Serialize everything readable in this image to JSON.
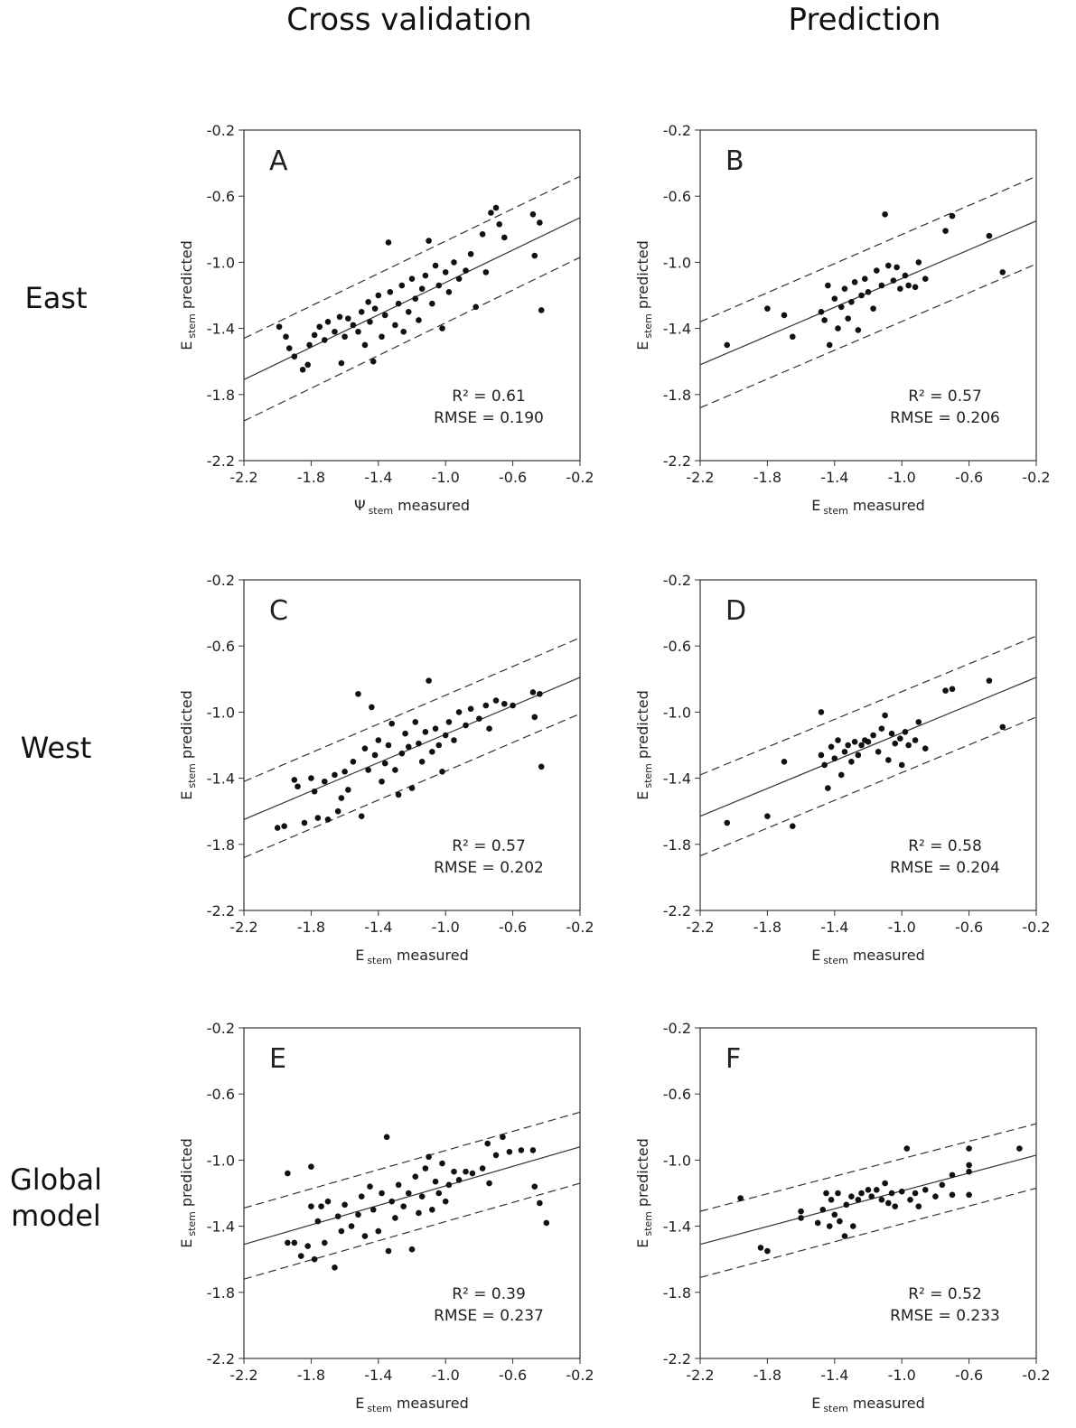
{
  "column_titles": [
    "Cross validation",
    "Prediction"
  ],
  "row_titles": [
    "East",
    "West",
    "Global model"
  ],
  "chart_data": [
    {
      "type": "scatter",
      "panel_label": "A",
      "xlabel": {
        "symbol": "Ψ",
        "subscript": "stem",
        "text": "measured"
      },
      "ylabel": {
        "symbol": "E",
        "subscript": "stem",
        "text": "predicted"
      },
      "stats": [
        "R² = 0.61",
        "RMSE = 0.190"
      ],
      "xlim": [
        -2.2,
        -0.2
      ],
      "ylim": [
        -2.2,
        -0.2
      ],
      "xticks": [
        -2.2,
        -1.8,
        -1.4,
        {
          "value": -1,
          "label": "-1.0"
        },
        -0.6,
        -0.2
      ],
      "yticks": [
        -2.2,
        -1.8,
        -1.4,
        {
          "value": -1,
          "label": "-1.0"
        },
        -0.6,
        -0.2
      ],
      "x": [
        -1.99,
        -1.95,
        -1.93,
        -1.9,
        -1.85,
        -1.82,
        -1.81,
        -1.78,
        -1.75,
        -1.72,
        -1.7,
        -1.66,
        -1.63,
        -1.62,
        -1.6,
        -1.58,
        -1.55,
        -1.52,
        -1.5,
        -1.48,
        -1.46,
        -1.45,
        -1.43,
        -1.42,
        -1.4,
        -1.38,
        -1.36,
        -1.34,
        -1.33,
        -1.3,
        -1.28,
        -1.26,
        -1.25,
        -1.22,
        -1.2,
        -1.18,
        -1.16,
        -1.14,
        -1.12,
        -1.1,
        -1.08,
        -1.06,
        -1.04,
        -1.02,
        -1.0,
        -0.98,
        -0.95,
        -0.92,
        -0.88,
        -0.85,
        -0.82,
        -0.78,
        -0.76,
        -0.73,
        -0.7,
        -0.68,
        -0.65,
        -0.48,
        -0.47,
        -0.44,
        -0.43
      ],
      "y": [
        -1.39,
        -1.45,
        -1.52,
        -1.57,
        -1.65,
        -1.62,
        -1.5,
        -1.44,
        -1.39,
        -1.47,
        -1.36,
        -1.42,
        -1.33,
        -1.61,
        -1.45,
        -1.34,
        -1.38,
        -1.42,
        -1.3,
        -1.5,
        -1.24,
        -1.36,
        -1.6,
        -1.28,
        -1.2,
        -1.45,
        -1.32,
        -0.88,
        -1.18,
        -1.38,
        -1.25,
        -1.14,
        -1.42,
        -1.3,
        -1.1,
        -1.22,
        -1.35,
        -1.16,
        -1.08,
        -0.87,
        -1.25,
        -1.02,
        -1.14,
        -1.4,
        -1.06,
        -1.18,
        -1.0,
        -1.1,
        -1.05,
        -0.95,
        -1.27,
        -0.83,
        -1.06,
        -0.7,
        -0.67,
        -0.77,
        -0.85,
        -0.71,
        -0.96,
        -0.76,
        -1.29
      ],
      "lines": [
        {
          "style": "solid",
          "x": [
            -2.2,
            -0.2
          ],
          "y": [
            -1.71,
            -0.73
          ]
        },
        {
          "style": "dashed",
          "x": [
            -2.2,
            -0.2
          ],
          "y": [
            -1.46,
            -0.48
          ]
        },
        {
          "style": "dashed",
          "x": [
            -2.2,
            -0.2
          ],
          "y": [
            -1.96,
            -0.97
          ]
        }
      ],
      "color": "#111111"
    },
    {
      "type": "scatter",
      "panel_label": "B",
      "xlabel": {
        "symbol": "E",
        "subscript": "stem",
        "text": "measured"
      },
      "ylabel": {
        "symbol": "E",
        "subscript": "stem",
        "text": "predicted"
      },
      "stats": [
        "R² = 0.57",
        "RMSE = 0.206"
      ],
      "xlim": [
        -2.2,
        -0.2
      ],
      "ylim": [
        -2.2,
        -0.2
      ],
      "xticks": [
        -2.2,
        -1.8,
        -1.4,
        {
          "value": -1,
          "label": "-1.0"
        },
        -0.6,
        -0.2
      ],
      "yticks": [
        -2.2,
        -1.8,
        -1.4,
        {
          "value": -1,
          "label": "-1.0"
        },
        -0.6,
        -0.2
      ],
      "x": [
        -2.04,
        -1.8,
        -1.7,
        -1.65,
        -1.48,
        -1.46,
        -1.44,
        -1.43,
        -1.4,
        -1.38,
        -1.36,
        -1.34,
        -1.32,
        -1.3,
        -1.28,
        -1.26,
        -1.24,
        -1.22,
        -1.2,
        -1.17,
        -1.15,
        -1.12,
        -1.1,
        -1.08,
        -1.05,
        -1.03,
        -1.01,
        -0.98,
        -0.96,
        -0.92,
        -0.9,
        -0.86,
        -0.74,
        -0.7,
        -0.48,
        -0.4
      ],
      "y": [
        -1.5,
        -1.28,
        -1.32,
        -1.45,
        -1.3,
        -1.35,
        -1.14,
        -1.5,
        -1.22,
        -1.4,
        -1.27,
        -1.16,
        -1.34,
        -1.24,
        -1.12,
        -1.41,
        -1.2,
        -1.1,
        -1.18,
        -1.28,
        -1.05,
        -1.14,
        -0.71,
        -1.02,
        -1.11,
        -1.03,
        -1.16,
        -1.08,
        -1.14,
        -1.15,
        -1.0,
        -1.1,
        -0.81,
        -0.72,
        -0.84,
        -1.06
      ],
      "lines": [
        {
          "style": "solid",
          "x": [
            -2.2,
            -0.2
          ],
          "y": [
            -1.62,
            -0.75
          ]
        },
        {
          "style": "dashed",
          "x": [
            -2.2,
            -0.2
          ],
          "y": [
            -1.36,
            -0.48
          ]
        },
        {
          "style": "dashed",
          "x": [
            -2.2,
            -0.2
          ],
          "y": [
            -1.88,
            -1.01
          ]
        }
      ],
      "color": "#111111"
    },
    {
      "type": "scatter",
      "panel_label": "C",
      "xlabel": {
        "symbol": "E",
        "subscript": "stem",
        "text": "measured"
      },
      "ylabel": {
        "symbol": "E",
        "subscript": "stem",
        "text": "predicted"
      },
      "stats": [
        "R² = 0.57",
        "RMSE = 0.202"
      ],
      "xlim": [
        -2.2,
        -0.2
      ],
      "ylim": [
        -2.2,
        -0.2
      ],
      "xticks": [
        -2.2,
        -1.8,
        -1.4,
        {
          "value": -1,
          "label": "-1.0"
        },
        -0.6,
        -0.2
      ],
      "yticks": [
        -2.2,
        -1.8,
        -1.4,
        {
          "value": -1,
          "label": "-1.0"
        },
        -0.6,
        -0.2
      ],
      "x": [
        -2.0,
        -1.96,
        -1.9,
        -1.88,
        -1.84,
        -1.8,
        -1.78,
        -1.76,
        -1.72,
        -1.7,
        -1.66,
        -1.64,
        -1.62,
        -1.6,
        -1.58,
        -1.55,
        -1.52,
        -1.5,
        -1.48,
        -1.46,
        -1.44,
        -1.42,
        -1.4,
        -1.38,
        -1.36,
        -1.34,
        -1.32,
        -1.3,
        -1.28,
        -1.26,
        -1.24,
        -1.22,
        -1.2,
        -1.18,
        -1.16,
        -1.14,
        -1.12,
        -1.1,
        -1.08,
        -1.06,
        -1.04,
        -1.02,
        -1.0,
        -0.98,
        -0.95,
        -0.92,
        -0.88,
        -0.85,
        -0.8,
        -0.76,
        -0.74,
        -0.7,
        -0.65,
        -0.6,
        -0.48,
        -0.47,
        -0.44,
        -0.43
      ],
      "y": [
        -1.7,
        -1.69,
        -1.41,
        -1.45,
        -1.67,
        -1.4,
        -1.48,
        -1.64,
        -1.42,
        -1.65,
        -1.38,
        -1.6,
        -1.52,
        -1.36,
        -1.47,
        -1.3,
        -0.89,
        -1.63,
        -1.22,
        -1.35,
        -0.97,
        -1.26,
        -1.17,
        -1.42,
        -1.31,
        -1.2,
        -1.07,
        -1.35,
        -1.5,
        -1.25,
        -1.13,
        -1.21,
        -1.46,
        -1.06,
        -1.19,
        -1.3,
        -1.12,
        -0.81,
        -1.24,
        -1.1,
        -1.2,
        -1.36,
        -1.14,
        -1.06,
        -1.17,
        -1.0,
        -1.08,
        -0.98,
        -1.04,
        -0.96,
        -1.1,
        -0.93,
        -0.95,
        -0.96,
        -0.88,
        -1.03,
        -0.89,
        -1.33
      ],
      "lines": [
        {
          "style": "solid",
          "x": [
            -2.2,
            -0.2
          ],
          "y": [
            -1.65,
            -0.79
          ]
        },
        {
          "style": "dashed",
          "x": [
            -2.2,
            -0.2
          ],
          "y": [
            -1.42,
            -0.55
          ]
        },
        {
          "style": "dashed",
          "x": [
            -2.2,
            -0.2
          ],
          "y": [
            -1.88,
            -1.01
          ]
        }
      ],
      "color": "#111111"
    },
    {
      "type": "scatter",
      "panel_label": "D",
      "xlabel": {
        "symbol": "E",
        "subscript": "stem",
        "text": "measured"
      },
      "ylabel": {
        "symbol": "E",
        "subscript": "stem",
        "text": "predicted"
      },
      "stats": [
        "R² = 0.58",
        "RMSE = 0.204"
      ],
      "xlim": [
        -2.2,
        -0.2
      ],
      "ylim": [
        -2.2,
        -0.2
      ],
      "xticks": [
        -2.2,
        -1.8,
        -1.4,
        {
          "value": -1,
          "label": "-1.0"
        },
        -0.6,
        -0.2
      ],
      "yticks": [
        -2.2,
        -1.8,
        -1.4,
        {
          "value": -1,
          "label": "-1.0"
        },
        -0.6,
        -0.2
      ],
      "x": [
        -2.04,
        -1.8,
        -1.7,
        -1.65,
        -1.48,
        -1.48,
        -1.46,
        -1.44,
        -1.42,
        -1.4,
        -1.38,
        -1.36,
        -1.34,
        -1.32,
        -1.3,
        -1.28,
        -1.26,
        -1.24,
        -1.22,
        -1.2,
        -1.17,
        -1.14,
        -1.12,
        -1.1,
        -1.08,
        -1.06,
        -1.04,
        -1.01,
        -1.0,
        -0.98,
        -0.96,
        -0.92,
        -0.9,
        -0.86,
        -0.74,
        -0.7,
        -0.48,
        -0.4
      ],
      "y": [
        -1.67,
        -1.63,
        -1.3,
        -1.69,
        -1.0,
        -1.26,
        -1.32,
        -1.46,
        -1.21,
        -1.28,
        -1.17,
        -1.38,
        -1.24,
        -1.2,
        -1.3,
        -1.18,
        -1.26,
        -1.2,
        -1.17,
        -1.18,
        -1.14,
        -1.24,
        -1.1,
        -1.02,
        -1.29,
        -1.13,
        -1.19,
        -1.16,
        -1.32,
        -1.12,
        -1.2,
        -1.17,
        -1.06,
        -1.22,
        -0.87,
        -0.86,
        -0.81,
        -1.09
      ],
      "lines": [
        {
          "style": "solid",
          "x": [
            -2.2,
            -0.2
          ],
          "y": [
            -1.63,
            -0.79
          ]
        },
        {
          "style": "dashed",
          "x": [
            -2.2,
            -0.2
          ],
          "y": [
            -1.38,
            -0.54
          ]
        },
        {
          "style": "dashed",
          "x": [
            -2.2,
            -0.2
          ],
          "y": [
            -1.87,
            -1.03
          ]
        }
      ],
      "color": "#111111"
    },
    {
      "type": "scatter",
      "panel_label": "E",
      "xlabel": {
        "symbol": "E",
        "subscript": "stem",
        "text": "measured"
      },
      "ylabel": {
        "symbol": "E",
        "subscript": "stem",
        "text": "predicted"
      },
      "stats": [
        "R² = 0.39",
        "RMSE = 0.237"
      ],
      "xlim": [
        -2.2,
        -0.2
      ],
      "ylim": [
        -2.2,
        -0.2
      ],
      "xticks": [
        -2.2,
        -1.8,
        -1.4,
        {
          "value": -1,
          "label": "-1.0"
        },
        -0.6,
        -0.2
      ],
      "yticks": [
        -2.2,
        -1.8,
        -1.4,
        {
          "value": -1,
          "label": "-1.0"
        },
        -0.6,
        -0.2
      ],
      "x": [
        -1.94,
        -1.94,
        -1.9,
        -1.86,
        -1.82,
        -1.8,
        -1.8,
        -1.78,
        -1.76,
        -1.74,
        -1.72,
        -1.7,
        -1.66,
        -1.64,
        -1.62,
        -1.6,
        -1.56,
        -1.52,
        -1.5,
        -1.48,
        -1.45,
        -1.43,
        -1.4,
        -1.38,
        -1.35,
        -1.34,
        -1.32,
        -1.3,
        -1.28,
        -1.25,
        -1.22,
        -1.2,
        -1.18,
        -1.16,
        -1.14,
        -1.12,
        -1.1,
        -1.08,
        -1.06,
        -1.04,
        -1.02,
        -1.0,
        -0.98,
        -0.95,
        -0.92,
        -0.88,
        -0.84,
        -0.78,
        -0.75,
        -0.74,
        -0.7,
        -0.66,
        -0.62,
        -0.55,
        -0.48,
        -0.47,
        -0.44,
        -0.4
      ],
      "y": [
        -1.08,
        -1.5,
        -1.5,
        -1.58,
        -1.52,
        -1.04,
        -1.28,
        -1.6,
        -1.37,
        -1.28,
        -1.5,
        -1.25,
        -1.65,
        -1.34,
        -1.43,
        -1.27,
        -1.4,
        -1.33,
        -1.22,
        -1.46,
        -1.16,
        -1.3,
        -1.43,
        -1.2,
        -0.86,
        -1.55,
        -1.25,
        -1.35,
        -1.15,
        -1.28,
        -1.2,
        -1.54,
        -1.1,
        -1.32,
        -1.22,
        -1.05,
        -0.98,
        -1.3,
        -1.13,
        -1.2,
        -1.02,
        -1.25,
        -1.15,
        -1.07,
        -1.12,
        -1.07,
        -1.08,
        -1.05,
        -0.9,
        -1.14,
        -0.97,
        -0.86,
        -0.95,
        -0.94,
        -0.94,
        -1.16,
        -1.26,
        -1.38
      ],
      "lines": [
        {
          "style": "solid",
          "x": [
            -2.2,
            -0.2
          ],
          "y": [
            -1.51,
            -0.92
          ]
        },
        {
          "style": "dashed",
          "x": [
            -2.2,
            -0.2
          ],
          "y": [
            -1.29,
            -0.71
          ]
        },
        {
          "style": "dashed",
          "x": [
            -2.2,
            -0.2
          ],
          "y": [
            -1.72,
            -1.14
          ]
        }
      ],
      "color": "#111111"
    },
    {
      "type": "scatter",
      "panel_label": "F",
      "xlabel": {
        "symbol": "E",
        "subscript": "stem",
        "text": "measured"
      },
      "ylabel": {
        "symbol": "E",
        "subscript": "stem",
        "text": "predicted"
      },
      "stats": [
        "R² = 0.52",
        "RMSE = 0.233"
      ],
      "xlim": [
        -2.2,
        -0.2
      ],
      "ylim": [
        -2.2,
        -0.2
      ],
      "xticks": [
        -2.2,
        -1.8,
        -1.4,
        {
          "value": -1,
          "label": "-1.0"
        },
        -0.6,
        -0.2
      ],
      "yticks": [
        -2.2,
        -1.8,
        -1.4,
        {
          "value": -1,
          "label": "-1.0"
        },
        -0.6,
        -0.2
      ],
      "x": [
        -1.96,
        -1.84,
        -1.8,
        -1.6,
        -1.6,
        -1.5,
        -1.47,
        -1.45,
        -1.43,
        -1.42,
        -1.4,
        -1.38,
        -1.37,
        -1.34,
        -1.33,
        -1.3,
        -1.29,
        -1.26,
        -1.24,
        -1.2,
        -1.18,
        -1.15,
        -1.12,
        -1.1,
        -1.08,
        -1.06,
        -1.04,
        -1.0,
        -0.97,
        -0.95,
        -0.92,
        -0.9,
        -0.86,
        -0.8,
        -0.76,
        -0.7,
        -0.7,
        -0.6,
        -0.6,
        -0.6,
        -0.6,
        -0.3
      ],
      "y": [
        -1.23,
        -1.53,
        -1.55,
        -1.31,
        -1.35,
        -1.38,
        -1.3,
        -1.2,
        -1.4,
        -1.24,
        -1.33,
        -1.2,
        -1.37,
        -1.46,
        -1.27,
        -1.22,
        -1.4,
        -1.24,
        -1.2,
        -1.18,
        -1.22,
        -1.18,
        -1.24,
        -1.14,
        -1.26,
        -1.2,
        -1.28,
        -1.19,
        -0.93,
        -1.24,
        -1.2,
        -1.28,
        -1.18,
        -1.22,
        -1.15,
        -1.09,
        -1.21,
        -0.93,
        -1.03,
        -1.07,
        -1.21,
        -0.93
      ],
      "lines": [
        {
          "style": "solid",
          "x": [
            -2.2,
            -0.2
          ],
          "y": [
            -1.51,
            -0.97
          ]
        },
        {
          "style": "dashed",
          "x": [
            -2.2,
            -0.2
          ],
          "y": [
            -1.31,
            -0.78
          ]
        },
        {
          "style": "dashed",
          "x": [
            -2.2,
            -0.2
          ],
          "y": [
            -1.71,
            -1.17
          ]
        }
      ],
      "color": "#111111"
    }
  ]
}
